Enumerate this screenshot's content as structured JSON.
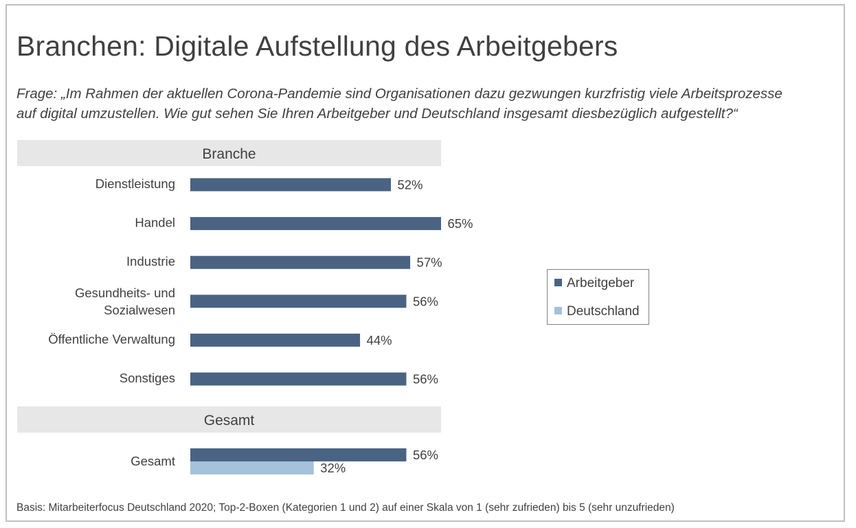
{
  "title": "Branchen: Digitale Aufstellung des Arbeitgebers",
  "question_line1": "Frage: „Im Rahmen der aktuellen Corona-Pandemie sind Organisationen dazu gezwungen kurzfristig viele Arbeitsprozesse",
  "question_line2": "auf digital umzustellen. Wie gut sehen Sie Ihren Arbeitgeber und Deutschland insgesamt diesbezüglich aufgestellt?“",
  "footnote": "Basis: Mitarbeiterfocus Deutschland 2020; Top-2-Boxen (Kategorien 1 und 2) auf einer Skala von 1 (sehr zufrieden) bis 5 (sehr unzufrieden)",
  "colors": {
    "arbeitgeber": "#4a6382",
    "deutschland": "#a4c2da",
    "section_bg": "#e7e7e7",
    "text": "#404040"
  },
  "chart_data": {
    "type": "bar",
    "orientation": "horizontal",
    "value_format": "percent",
    "xlim": [
      0,
      65
    ],
    "legend": {
      "position": "right",
      "entries": [
        "Arbeitgeber",
        "Deutschland"
      ]
    },
    "groups": [
      {
        "header": "Branche",
        "categories": [
          "Dienstleistung",
          "Handel",
          "Industrie",
          "Gesundheits- und Sozialwesen",
          "Öffentliche Verwaltung",
          "Sonstiges"
        ],
        "series": [
          {
            "name": "Arbeitgeber",
            "values": [
              52,
              65,
              57,
              56,
              44,
              56
            ]
          }
        ]
      },
      {
        "header": "Gesamt",
        "categories": [
          "Gesamt"
        ],
        "series": [
          {
            "name": "Arbeitgeber",
            "values": [
              56
            ]
          },
          {
            "name": "Deutschland",
            "values": [
              32
            ]
          }
        ]
      }
    ]
  }
}
